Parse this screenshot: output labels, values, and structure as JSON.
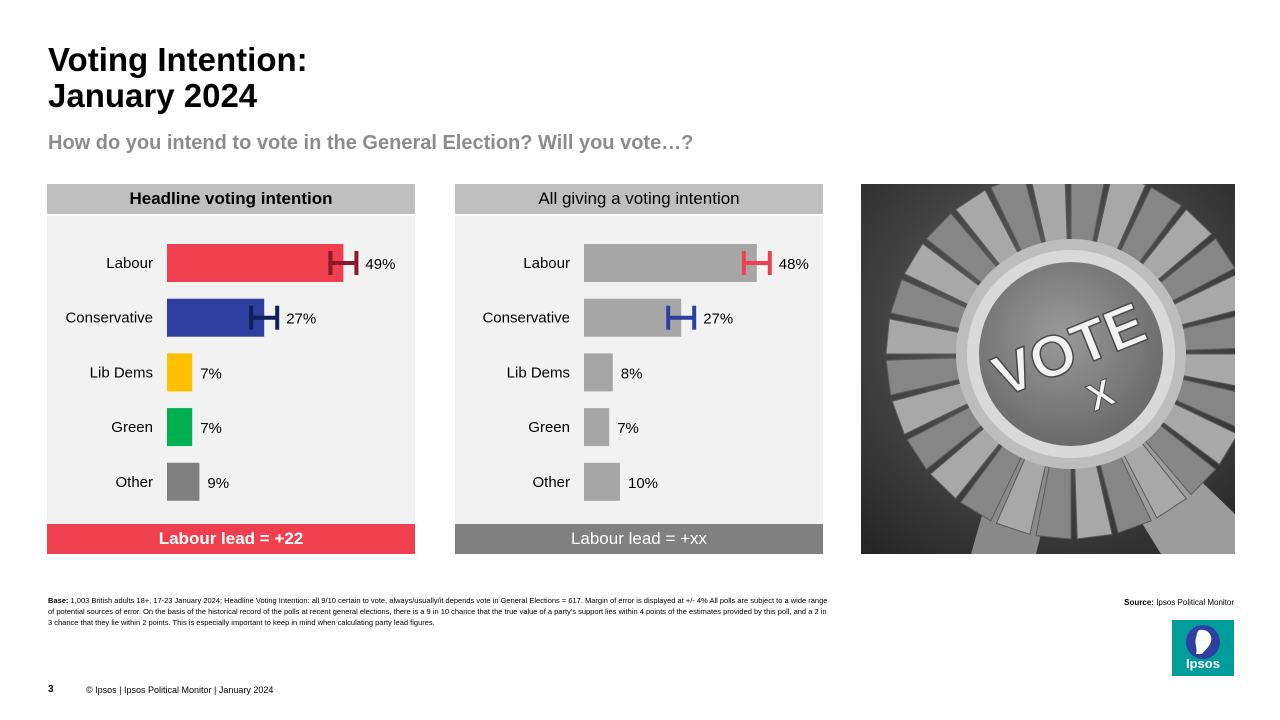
{
  "title_line1": "Voting Intention:",
  "title_line2": "January 2024",
  "subtitle": "How do you intend to vote in the General Election? Will you vote…?",
  "chart_data": [
    {
      "type": "bar",
      "orientation": "horizontal",
      "title": "Headline voting intention",
      "categories": [
        "Labour",
        "Conservative",
        "Lib Dems",
        "Green",
        "Other"
      ],
      "values": [
        49,
        27,
        7,
        7,
        9
      ],
      "value_labels": [
        "49%",
        "27%",
        "7%",
        "7%",
        "9%"
      ],
      "colors": [
        "#f04050",
        "#2f3fa0",
        "#ffc000",
        "#00b050",
        "#808080"
      ],
      "error_bar_colors": [
        "#8b1a2b",
        "#0f1f5c",
        null,
        null,
        null
      ],
      "error_bars_on": [
        true,
        true,
        false,
        false,
        false
      ],
      "xlim": [
        0,
        100
      ],
      "footer": "Labour lead = +22",
      "footer_color": "#f04050"
    },
    {
      "type": "bar",
      "orientation": "horizontal",
      "title": "All giving a voting intention",
      "categories": [
        "Labour",
        "Conservative",
        "Lib Dems",
        "Green",
        "Other"
      ],
      "values": [
        48,
        27,
        8,
        7,
        10
      ],
      "value_labels": [
        "48%",
        "27%",
        "8%",
        "7%",
        "10%"
      ],
      "colors": [
        "#a6a6a6",
        "#a6a6a6",
        "#a6a6a6",
        "#a6a6a6",
        "#a6a6a6"
      ],
      "error_bar_colors": [
        "#f04050",
        "#2f3fa0",
        null,
        null,
        null
      ],
      "error_bars_on": [
        true,
        true,
        false,
        false,
        false
      ],
      "xlim": [
        0,
        100
      ],
      "footer": "Labour lead = +xx",
      "footer_color": "#808080"
    }
  ],
  "photo": {
    "text": "VOTE",
    "mark": "X"
  },
  "base_label": "Base:",
  "base_text": " 1,003 British adults 18+, 17-23 January 2024; Headline Voting Intention:  all  9/10 certain to vote, always/usually/it depends vote in General Elections = 617. Margin of error is displayed at +/- 4% All polls are subject to a wide range of potential sources of error. On the basis of the historical record of the polls at recent general elections, there is a 9 in 10 chance that the true value of a party's support lies within 4 points of the estimates provided by this poll, and a 2 in 3 chance that they lie within 2 points. This is especially important to keep in mind when calculating party lead figures.",
  "source_label": "Source:",
  "source_text": " Ipsos Political Monitor",
  "logo_text": "Ipsos",
  "page_number": "3",
  "copyright": "© Ipsos | Ipsos Political Monitor | January 2024"
}
